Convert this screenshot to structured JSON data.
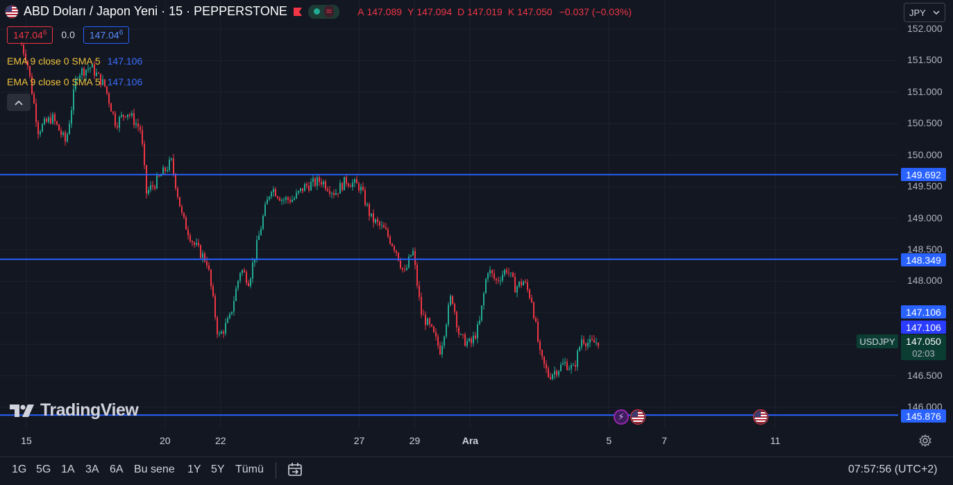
{
  "header": {
    "title": "ABD Doları / Japon Yeni · 15 · PEPPERSTONE",
    "status_icon": "wave-icon",
    "ohlc": {
      "open_label": "A",
      "open": "147.089",
      "high_label": "Y",
      "high": "147.094",
      "low_label": "D",
      "low": "147.019",
      "close_label": "K",
      "close": "147.050",
      "change": "−0.037 (−0.03%)"
    },
    "sell_price": "147.04",
    "sell_price_sup": "6",
    "spread": "0.0",
    "buy_price": "147.04",
    "buy_price_sup": "6",
    "currency": "JPY"
  },
  "indicators": [
    {
      "label": "EMA 9 close 0 SMA 5",
      "value": "147.106"
    },
    {
      "label": "EMA 9 close 0 SMA 5",
      "value": "147.106"
    }
  ],
  "price_axis": {
    "ticks": [
      "152.000",
      "151.500",
      "151.000",
      "150.500",
      "150.000",
      "149.500",
      "149.000",
      "148.500",
      "148.000",
      "146.500",
      "146.000"
    ],
    "tags": {
      "line1": "149.692",
      "line2": "148.349",
      "ema1": "147.106",
      "ema2": "147.106",
      "line3": "145.876"
    },
    "symbol": "USDJPY",
    "last_price": "147.050",
    "countdown": "02:03"
  },
  "time_axis": {
    "labels": [
      {
        "text": "15",
        "day": 15,
        "bold": false
      },
      {
        "text": "20",
        "day": 20,
        "bold": false
      },
      {
        "text": "22",
        "day": 22,
        "bold": false
      },
      {
        "text": "27",
        "day": 27,
        "bold": false
      },
      {
        "text": "29",
        "day": 29,
        "bold": false
      },
      {
        "text": "Ara",
        "day": 31,
        "bold": true
      },
      {
        "text": "5",
        "day": 36,
        "bold": false
      },
      {
        "text": "7",
        "day": 38,
        "bold": false
      },
      {
        "text": "11",
        "day": 42,
        "bold": false
      }
    ]
  },
  "footer": {
    "ranges": [
      "1G",
      "5G",
      "1A",
      "3A",
      "6A",
      "Bu sene",
      "1Y",
      "5Y",
      "Tümü"
    ],
    "clock": "07:57:56 (UTC+2)"
  },
  "branding": {
    "logo_text": "TradingView"
  },
  "colors": {
    "background": "#131722",
    "up": "#22ab94",
    "down": "#f23645",
    "hline": "#2962ff",
    "ema": "#f0c23b"
  },
  "chart_data": {
    "type": "candlestick",
    "symbol": "USDJPY",
    "timeframe": "15",
    "ylim": [
      145.7,
      152.0
    ],
    "x_unit": "day",
    "xlim": [
      14.8,
      43.8
    ],
    "horizontal_lines": [
      149.692,
      148.349,
      145.876
    ],
    "price_path": [
      [
        14.8,
        151.75
      ],
      [
        15.0,
        151.5
      ],
      [
        15.4,
        150.4
      ],
      [
        15.9,
        150.6
      ],
      [
        16.4,
        150.2
      ],
      [
        16.8,
        151.3
      ],
      [
        17.3,
        151.4
      ],
      [
        17.8,
        151.1
      ],
      [
        18.2,
        150.5
      ],
      [
        18.6,
        150.7
      ],
      [
        19.1,
        150.4
      ],
      [
        19.3,
        149.4
      ],
      [
        19.7,
        149.6
      ],
      [
        20.2,
        149.9
      ],
      [
        20.6,
        149.0
      ],
      [
        21.0,
        148.6
      ],
      [
        21.5,
        148.3
      ],
      [
        21.9,
        147.1
      ],
      [
        22.3,
        147.4
      ],
      [
        22.7,
        148.2
      ],
      [
        23.0,
        148.0
      ],
      [
        23.5,
        149.0
      ],
      [
        23.8,
        149.5
      ],
      [
        24.2,
        149.3
      ],
      [
        24.6,
        149.3
      ],
      [
        25.0,
        149.5
      ],
      [
        25.6,
        149.6
      ],
      [
        26.1,
        149.4
      ],
      [
        26.5,
        149.6
      ],
      [
        27.0,
        149.5
      ],
      [
        27.4,
        149.0
      ],
      [
        27.9,
        148.8
      ],
      [
        28.3,
        148.5
      ],
      [
        28.6,
        148.1
      ],
      [
        28.9,
        148.5
      ],
      [
        29.2,
        147.5
      ],
      [
        29.6,
        147.2
      ],
      [
        29.9,
        146.9
      ],
      [
        30.3,
        147.8
      ],
      [
        30.6,
        147.1
      ],
      [
        31.0,
        147.0
      ],
      [
        31.3,
        147.3
      ],
      [
        31.6,
        148.2
      ],
      [
        31.9,
        148.0
      ],
      [
        32.3,
        148.2
      ],
      [
        32.6,
        147.9
      ],
      [
        32.9,
        148.0
      ],
      [
        33.2,
        147.7
      ],
      [
        33.5,
        146.8
      ],
      [
        33.8,
        146.5
      ],
      [
        34.1,
        146.6
      ],
      [
        34.4,
        146.7
      ],
      [
        34.7,
        146.6
      ],
      [
        35.0,
        147.1
      ],
      [
        35.3,
        147.0
      ],
      [
        35.6,
        147.05
      ]
    ]
  }
}
